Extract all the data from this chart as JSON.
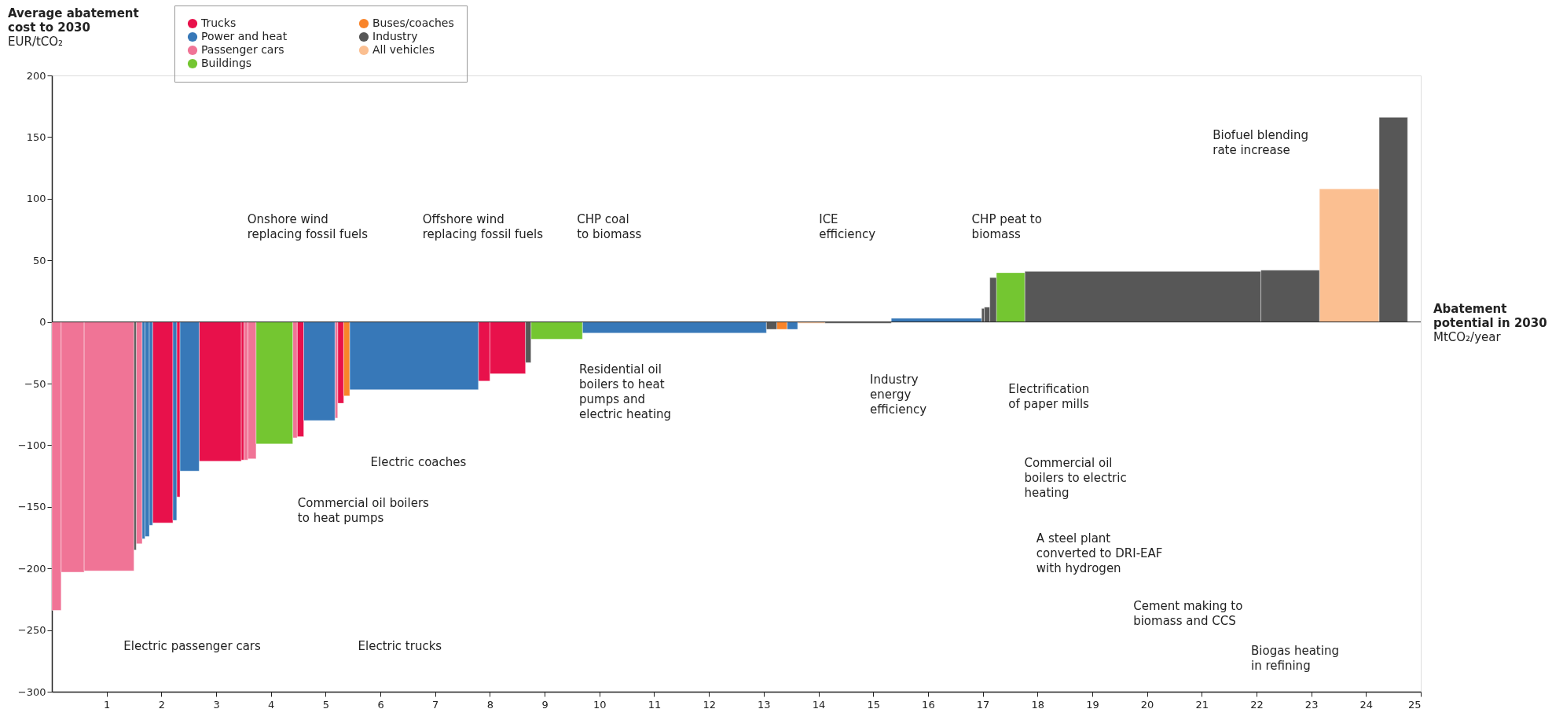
{
  "chart_data": {
    "type": "histogram",
    "ylabel": "Average abatement\ncost to 2030\nEUR/tCO₂",
    "xlabel": "Abatement\npotential in 2030\nMtCO₂/year",
    "bins": [
      0,
      0.17,
      0.59,
      1.5,
      1.54,
      1.65,
      1.7,
      1.78,
      1.84,
      2.21,
      2.28,
      2.34,
      2.69,
      3.46,
      3.51,
      3.58,
      3.73,
      4.4,
      4.48,
      4.6,
      5.17,
      5.22,
      5.33,
      5.44,
      7.79,
      8,
      8.65,
      8.75,
      9.69,
      13.05,
      13.24,
      13.43,
      13.62,
      14.12,
      15.33,
      16.98,
      17.03,
      17.13,
      17.25,
      17.77,
      22.08,
      23.15,
      24.24,
      24.76
    ],
    "series": [
      {
        "name": "Trucks",
        "color": "#e8114b",
        "values": [
          null,
          null,
          null,
          null,
          null,
          null,
          null,
          null,
          -163,
          null,
          -142,
          null,
          -113,
          -112,
          null,
          null,
          null,
          null,
          -93,
          null,
          null,
          -66,
          null,
          null,
          -48,
          -42,
          null,
          null,
          null,
          null,
          null,
          null,
          null,
          null,
          null,
          null,
          null,
          null,
          null,
          null,
          null,
          null,
          null
        ]
      },
      {
        "name": "Passenger cars",
        "color": "#f07496",
        "values": [
          -234,
          -203,
          -202,
          null,
          -180,
          null,
          null,
          null,
          null,
          null,
          null,
          null,
          null,
          null,
          -112,
          -111,
          null,
          -94,
          null,
          null,
          -78,
          null,
          null,
          null,
          null,
          null,
          null,
          null,
          null,
          null,
          null,
          null,
          null,
          null,
          null,
          null,
          null,
          null,
          null,
          null,
          null,
          null,
          null
        ]
      },
      {
        "name": "Buses/coaches",
        "color": "#f9842a",
        "values": [
          null,
          null,
          null,
          null,
          null,
          null,
          null,
          null,
          null,
          null,
          null,
          null,
          null,
          null,
          null,
          null,
          null,
          null,
          null,
          null,
          null,
          null,
          -60,
          null,
          null,
          null,
          null,
          null,
          null,
          null,
          -6,
          null,
          null,
          null,
          null,
          null,
          null,
          null,
          null,
          null,
          null,
          null,
          null
        ]
      },
      {
        "name": "All vehicles",
        "color": "#fbbf91",
        "values": [
          null,
          null,
          null,
          null,
          null,
          null,
          null,
          null,
          null,
          null,
          null,
          null,
          null,
          null,
          null,
          null,
          null,
          null,
          null,
          null,
          null,
          null,
          null,
          null,
          null,
          null,
          null,
          null,
          null,
          null,
          null,
          null,
          -1,
          null,
          null,
          null,
          null,
          null,
          null,
          null,
          null,
          108,
          null
        ]
      },
      {
        "name": "Power and heat",
        "color": "#3778b8",
        "values": [
          null,
          null,
          null,
          null,
          null,
          -176,
          -174,
          -165,
          null,
          -161,
          null,
          -121,
          null,
          null,
          null,
          null,
          null,
          null,
          null,
          -80,
          null,
          null,
          null,
          -55,
          null,
          null,
          null,
          null,
          -9,
          null,
          null,
          -6,
          null,
          null,
          3,
          null,
          null,
          null,
          null,
          null,
          null,
          null,
          null
        ]
      },
      {
        "name": "Buildings",
        "color": "#74c631",
        "values": [
          null,
          null,
          null,
          null,
          null,
          null,
          null,
          null,
          null,
          null,
          null,
          null,
          null,
          null,
          null,
          null,
          -99,
          null,
          null,
          null,
          null,
          null,
          null,
          null,
          null,
          null,
          null,
          -14,
          null,
          null,
          null,
          null,
          null,
          null,
          null,
          null,
          null,
          null,
          40,
          null,
          null,
          null,
          null
        ]
      },
      {
        "name": "Industry",
        "color": "#575757",
        "values": [
          null,
          null,
          null,
          -185,
          null,
          null,
          null,
          null,
          null,
          null,
          null,
          null,
          null,
          null,
          null,
          null,
          null,
          null,
          null,
          null,
          null,
          null,
          null,
          null,
          null,
          null,
          -33,
          null,
          null,
          -6,
          null,
          null,
          null,
          -1,
          null,
          11,
          12,
          36,
          null,
          41,
          42,
          null,
          166
        ]
      }
    ],
    "xlim": [
      0,
      25
    ],
    "xticks": [
      1,
      2,
      3,
      4,
      5,
      6,
      7,
      8,
      9,
      10,
      11,
      12,
      13,
      14,
      15,
      16,
      17,
      18,
      19,
      20,
      21,
      22,
      23,
      24,
      25
    ],
    "ylim": [
      -300,
      200
    ],
    "yticks": [
      -300,
      -250,
      -200,
      -150,
      -100,
      -50,
      0,
      50,
      100,
      150,
      200
    ],
    "legend": "top left",
    "ref_lines": [
      {
        "axis": "y",
        "value": 0,
        "color": "#222222"
      }
    ],
    "annotations": [
      "Onshore wind\nreplacing fossil fuels",
      "Offshore wind\nreplacing fossil fuels",
      "CHP coal\nto biomass",
      "ICE\nefficiency",
      "CHP peat to\nbiomass",
      "Biofuel blending\nrate increase",
      "Electric passenger cars",
      "Electric trucks",
      "Commercial oil boilers\nto heat pumps",
      "Electric coaches",
      "Residential oil\nboilers to heat\npumps and\nelectric heating",
      "Industry\nenergy\nefficiency",
      "Electrification\nof paper mills",
      "Commercial oil\nboilers to electric\nheating",
      "A steel plant\nconverted to DRI-EAF\nwith hydrogen",
      "Cement making to\nbiomass and CCS",
      "Biogas heating\nin refining"
    ]
  }
}
